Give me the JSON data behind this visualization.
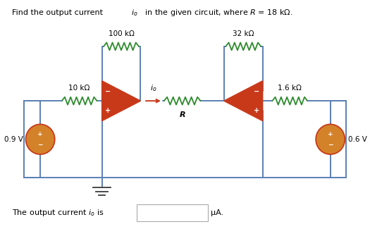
{
  "title_normal": "Find the output current ",
  "title_io": "i",
  "title_io_sub": "o",
  "title_rest": " in the given circuit, where R = 18 kΩ.",
  "bottom_unit": "μA.",
  "bg_color": "#ffffff",
  "wire_color": "#5b7fb5",
  "resistor_color": "#2e8b2e",
  "opamp_fill": "#c8391a",
  "opamp_edge": "#c8391a",
  "source_fill": "#d4822a",
  "source_edge": "#c8391a",
  "arrow_color": "#c8391a",
  "label_10k": "10 kΩ",
  "label_100k": "100 kΩ",
  "label_32k": "32 kΩ",
  "label_16k": "1.6 kΩ",
  "label_R": "R",
  "label_09V": "0.9 V",
  "label_06V": "0.6 V"
}
